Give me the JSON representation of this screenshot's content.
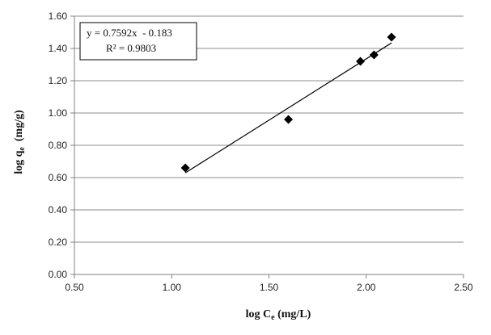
{
  "chart_data": {
    "type": "scatter",
    "xlabel": {
      "main": "log C",
      "sub": "e",
      "unit": " (mg/L)"
    },
    "ylabel": {
      "main": "log q",
      "sub": "e",
      "unit": "  (mg/g)"
    },
    "xlim": [
      0.5,
      2.5
    ],
    "ylim": [
      0.0,
      1.6
    ],
    "x_ticks": [
      0.5,
      1.0,
      1.5,
      2.0,
      2.5
    ],
    "y_ticks": [
      0.0,
      0.2,
      0.4,
      0.6,
      0.8,
      1.0,
      1.2,
      1.4,
      1.6
    ],
    "x_tick_labels": [
      "0.50",
      "1.00",
      "1.50",
      "2.00",
      "2.50"
    ],
    "y_tick_labels": [
      "0.00",
      "0.20",
      "0.40",
      "0.60",
      "0.80",
      "1.00",
      "1.20",
      "1.40",
      "1.60"
    ],
    "grid": {
      "horizontal": true,
      "vertical": false
    },
    "points": [
      {
        "x": 1.07,
        "y": 0.66
      },
      {
        "x": 1.6,
        "y": 0.96
      },
      {
        "x": 1.97,
        "y": 1.32
      },
      {
        "x": 2.04,
        "y": 1.36
      },
      {
        "x": 2.13,
        "y": 1.47
      }
    ],
    "marker": "diamond",
    "marker_color": "#000000",
    "trendline": {
      "type": "linear",
      "slope": 0.7592,
      "intercept": -0.183,
      "x_range": [
        1.07,
        2.13
      ]
    },
    "annotation": {
      "equation": "y = 0.7592x  - 0.183",
      "r_squared": "R² = 0.9803",
      "placement": "top-left"
    }
  }
}
